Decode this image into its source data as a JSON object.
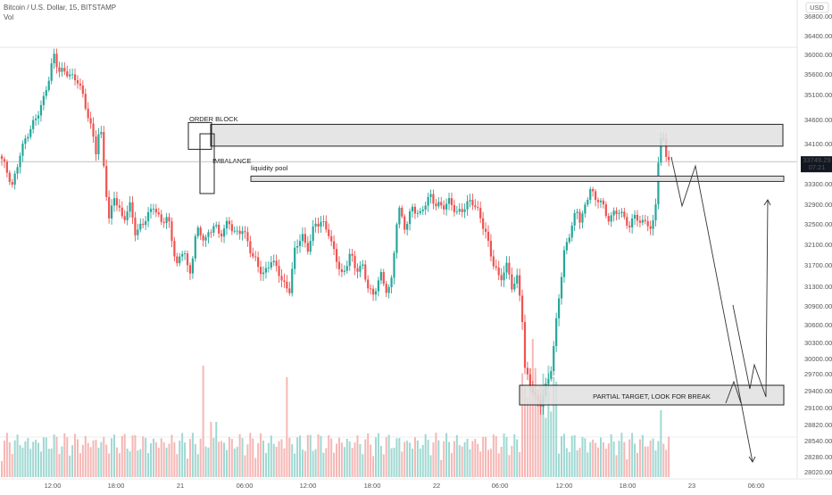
{
  "header": {
    "symbol_line": "Bitcoin / U.S. Dollar, 15, BITSTAMP",
    "volume_label": "Vol"
  },
  "currency_button": "USD",
  "price_label": {
    "price": "33749.29",
    "countdown": "07:21"
  },
  "colors": {
    "up": "#26a69a",
    "down": "#ef5350",
    "up_vol": "#9fd8d2",
    "down_vol": "#f5b7b5",
    "zone_fill": "#e0e0e0",
    "zone_stroke": "#222222",
    "price_line": "#9e9e9e",
    "label_bg": "#131722"
  },
  "annotations": {
    "order_block": "ORDER BLOCK",
    "imbalance": "IMBALANCE",
    "liquidity_pool": "liquidity pool",
    "partial_target": "PARTIAL TARGET, LOOK FOR BREAK"
  },
  "chart_data": {
    "type": "candlestick",
    "title": "Bitcoin / U.S. Dollar, 15, BITSTAMP",
    "price_axis_labels": [
      "36800.00",
      "36400.00",
      "36000.00",
      "35600.00",
      "35100.00",
      "34600.00",
      "34100.00",
      "33700.00",
      "33300.00",
      "32900.00",
      "32500.00",
      "32100.00",
      "31700.00",
      "31300.00",
      "30900.00",
      "30600.00",
      "30300.00",
      "30000.00",
      "29700.00",
      "29400.00",
      "29100.00",
      "28820.00",
      "28540.00",
      "28280.00",
      "28020.00"
    ],
    "time_axis_labels": [
      "12:00",
      "18:00",
      "21",
      "06:00",
      "12:00",
      "18:00",
      "22",
      "06:00",
      "12:00",
      "18:00",
      "23",
      "06:00"
    ],
    "last_price": 33749.29,
    "zones": [
      {
        "label": "ORDER BLOCK",
        "price_top": 34500,
        "price_bottom": 34050
      },
      {
        "label": "liquidity pool",
        "price_top": 33420,
        "price_bottom": 33360
      },
      {
        "label": "PARTIAL TARGET, LOOK FOR BREAK",
        "price_top": 29400,
        "price_bottom": 29130
      }
    ],
    "key_prices": {
      "high": 36000,
      "low": 28700,
      "pre_dump_high": 33500
    },
    "projection_path_prices": [
      33800,
      33750,
      32950,
      33500,
      30000,
      29250,
      28100
    ],
    "projection_secondary_prices": [
      30950,
      29600,
      29950,
      29350,
      32950
    ]
  }
}
